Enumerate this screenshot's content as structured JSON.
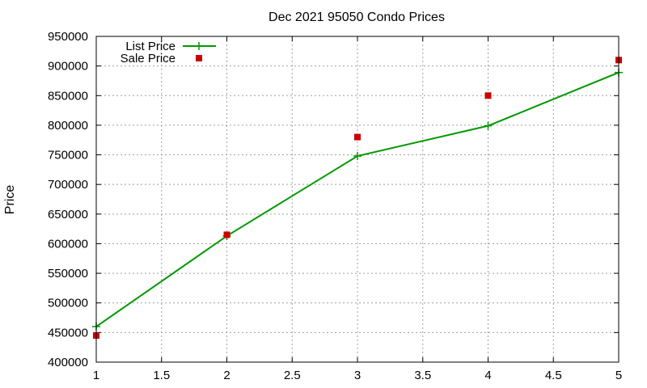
{
  "chart_data": {
    "type": "line",
    "title": "Dec 2021 95050 Condo Prices",
    "xlabel": "",
    "ylabel": "Price",
    "xlim": [
      1,
      5
    ],
    "ylim": [
      400000,
      950000
    ],
    "x_ticks": [
      "1",
      "1.5",
      "2",
      "2.5",
      "3",
      "3.5",
      "4",
      "4.5",
      "5"
    ],
    "y_ticks": [
      "400000",
      "450000",
      "500000",
      "550000",
      "600000",
      "650000",
      "700000",
      "750000",
      "800000",
      "850000",
      "900000",
      "950000"
    ],
    "x_tick_values": [
      1,
      1.5,
      2,
      2.5,
      3,
      3.5,
      4,
      4.5,
      5
    ],
    "y_tick_values": [
      400000,
      450000,
      500000,
      550000,
      600000,
      650000,
      700000,
      750000,
      800000,
      850000,
      900000,
      950000
    ],
    "grid": true,
    "legend_position": "top-left",
    "series": [
      {
        "name": "List Price",
        "style": "linespoints",
        "marker": "plus",
        "color": "#009900",
        "x": [
          1,
          2,
          3,
          4,
          5
        ],
        "y": [
          460000,
          613000,
          748000,
          799000,
          889000
        ]
      },
      {
        "name": "Sale Price",
        "style": "points",
        "marker": "square",
        "color": "#cc0000",
        "x": [
          1,
          2,
          3,
          4,
          5
        ],
        "y": [
          445000,
          615000,
          780000,
          850000,
          910000
        ]
      }
    ]
  }
}
